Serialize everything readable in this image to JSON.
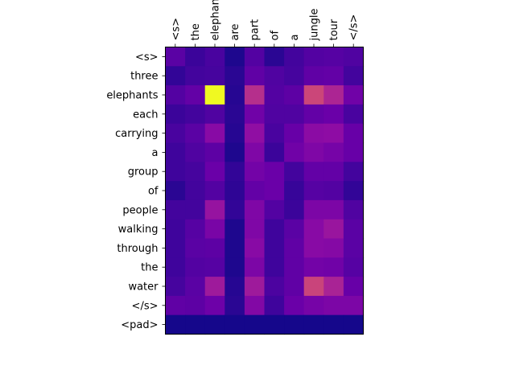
{
  "chart_data": {
    "type": "heatmap",
    "title": "",
    "xlabel": "",
    "ylabel": "",
    "x_tick_position": "top",
    "x_tick_rotation": 90,
    "colormap": "plasma",
    "value_range": [
      0,
      1
    ],
    "grid": false,
    "x_labels": [
      "<s>",
      "the",
      "elephants",
      "are",
      "part",
      "of",
      "a",
      "jungle",
      "tour",
      "</s>"
    ],
    "y_labels": [
      "<s>",
      "three",
      "elephants",
      "each",
      "carrying",
      "a",
      "group",
      "of",
      "people",
      "walking",
      "through",
      "the",
      "water",
      "</s>",
      "<pad>"
    ],
    "values": [
      [
        0.2,
        0.11,
        0.15,
        0.04,
        0.18,
        0.07,
        0.13,
        0.18,
        0.19,
        0.17
      ],
      [
        0.09,
        0.13,
        0.14,
        0.07,
        0.22,
        0.17,
        0.14,
        0.22,
        0.23,
        0.13
      ],
      [
        0.18,
        0.23,
        1.0,
        0.06,
        0.52,
        0.18,
        0.21,
        0.62,
        0.48,
        0.27
      ],
      [
        0.11,
        0.13,
        0.17,
        0.07,
        0.27,
        0.17,
        0.17,
        0.23,
        0.25,
        0.15
      ],
      [
        0.15,
        0.2,
        0.35,
        0.06,
        0.38,
        0.15,
        0.24,
        0.36,
        0.37,
        0.24
      ],
      [
        0.12,
        0.17,
        0.21,
        0.04,
        0.32,
        0.11,
        0.27,
        0.32,
        0.29,
        0.24
      ],
      [
        0.12,
        0.14,
        0.25,
        0.09,
        0.28,
        0.25,
        0.13,
        0.23,
        0.23,
        0.13
      ],
      [
        0.07,
        0.13,
        0.18,
        0.08,
        0.23,
        0.25,
        0.1,
        0.19,
        0.18,
        0.09
      ],
      [
        0.13,
        0.13,
        0.4,
        0.09,
        0.32,
        0.18,
        0.11,
        0.31,
        0.31,
        0.17
      ],
      [
        0.12,
        0.19,
        0.3,
        0.04,
        0.32,
        0.12,
        0.2,
        0.35,
        0.41,
        0.2
      ],
      [
        0.12,
        0.2,
        0.21,
        0.04,
        0.35,
        0.12,
        0.22,
        0.35,
        0.34,
        0.2
      ],
      [
        0.12,
        0.18,
        0.19,
        0.04,
        0.31,
        0.12,
        0.22,
        0.28,
        0.27,
        0.19
      ],
      [
        0.14,
        0.2,
        0.43,
        0.06,
        0.43,
        0.16,
        0.22,
        0.61,
        0.47,
        0.24
      ],
      [
        0.22,
        0.21,
        0.26,
        0.07,
        0.33,
        0.12,
        0.25,
        0.29,
        0.31,
        0.31
      ],
      [
        0.02,
        0.02,
        0.02,
        0.02,
        0.02,
        0.02,
        0.02,
        0.02,
        0.02,
        0.02
      ]
    ]
  }
}
